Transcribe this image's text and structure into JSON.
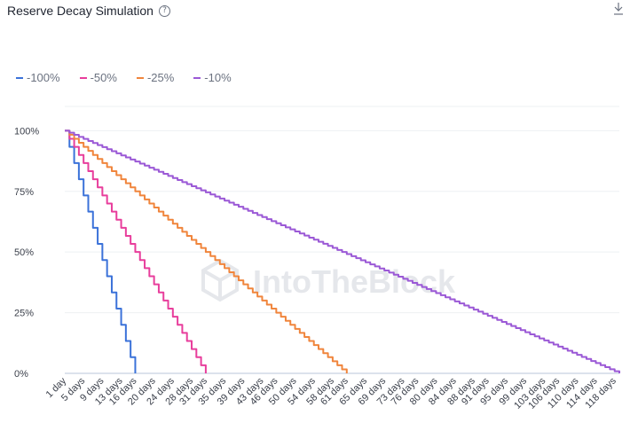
{
  "header": {
    "title": "Reserve Decay Simulation",
    "help_icon": "question-circle-icon",
    "download_icon": "download-icon"
  },
  "watermark": {
    "text": "IntoTheBlock",
    "icon": "cube-logo-icon"
  },
  "chart_data": {
    "type": "line",
    "title": "Reserve Decay Simulation",
    "x_unit_label": "days",
    "x_day_range": [
      1,
      119
    ],
    "x_tick_days": [
      1,
      5,
      9,
      13,
      16,
      20,
      24,
      28,
      31,
      35,
      39,
      43,
      46,
      50,
      54,
      58,
      61,
      65,
      69,
      73,
      76,
      80,
      84,
      88,
      91,
      95,
      99,
      103,
      106,
      110,
      114,
      118
    ],
    "y_ticks": [
      "0%",
      "25%",
      "50%",
      "75%",
      "100%"
    ],
    "ylim": [
      0,
      110
    ],
    "legend_position": "top-left",
    "series": [
      {
        "name": "-100%",
        "color": "#3b72d9",
        "points": [
          [
            1,
            100
          ],
          [
            16,
            0
          ]
        ]
      },
      {
        "name": "-50%",
        "color": "#e83e9c",
        "points": [
          [
            1,
            100
          ],
          [
            31,
            0
          ]
        ]
      },
      {
        "name": "-25%",
        "color": "#f0853c",
        "points": [
          [
            1,
            100
          ],
          [
            61,
            0
          ]
        ]
      },
      {
        "name": "-10%",
        "color": "#9b59d6",
        "points": [
          [
            1,
            100
          ],
          [
            119,
            0
          ]
        ]
      }
    ]
  }
}
